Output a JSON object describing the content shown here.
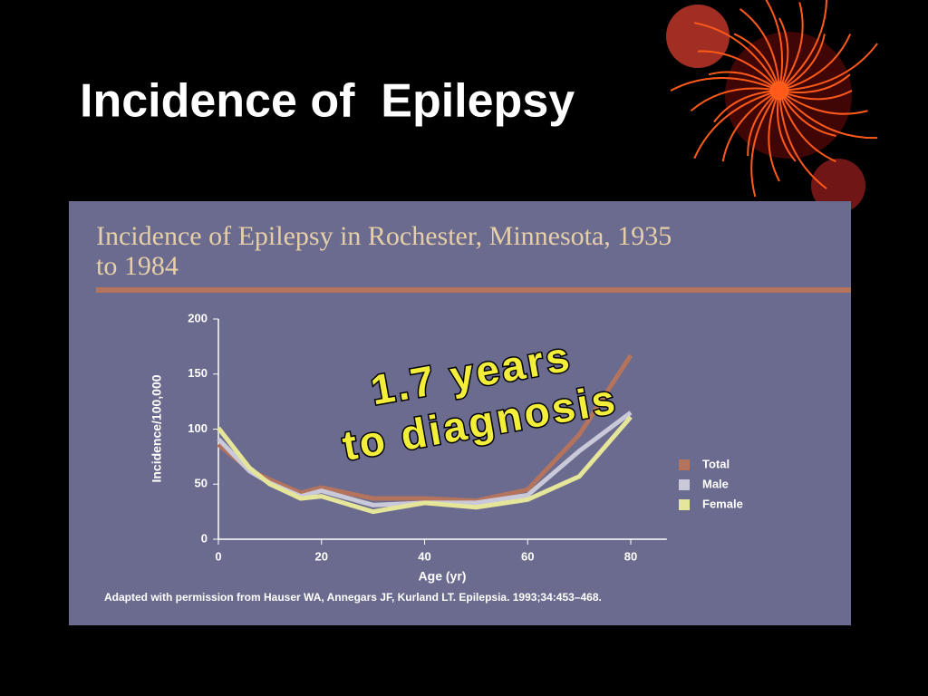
{
  "slide_title": "Incidence of  Epilepsy",
  "annotation": [
    "1.7 years",
    "to diagnosis"
  ],
  "chart_data": {
    "type": "line",
    "title": "Incidence of Epilepsy in Rochester, Minnesota, 1935 to 1984",
    "x_label": "Age (yr)",
    "y_label": "Incidence/100,000",
    "source": "Adapted with permission from Hauser WA, Annegars JF, Kurland LT. Epilepsia. 1993;34:453–468.",
    "x": [
      0,
      6,
      10,
      16,
      20,
      30,
      40,
      50,
      60,
      70,
      80
    ],
    "series": [
      {
        "name": "Total",
        "color": "#b4735c",
        "values": [
          86,
          63,
          54,
          42,
          47,
          37,
          37,
          35,
          45,
          95,
          167
        ]
      },
      {
        "name": "Male",
        "color": "#c9c9d9",
        "values": [
          91,
          62,
          51,
          39,
          44,
          31,
          33,
          33,
          40,
          80,
          115
        ]
      },
      {
        "name": "Female",
        "color": "#e6e69a",
        "values": [
          101,
          65,
          50,
          37,
          39,
          25,
          33,
          29,
          36,
          57,
          111
        ]
      }
    ],
    "xlim": [
      0,
      87
    ],
    "ylim": [
      0,
      200
    ],
    "xticks": [
      0,
      20,
      40,
      60,
      80
    ],
    "yticks": [
      0,
      50,
      100,
      150,
      200
    ],
    "legend": "right"
  }
}
